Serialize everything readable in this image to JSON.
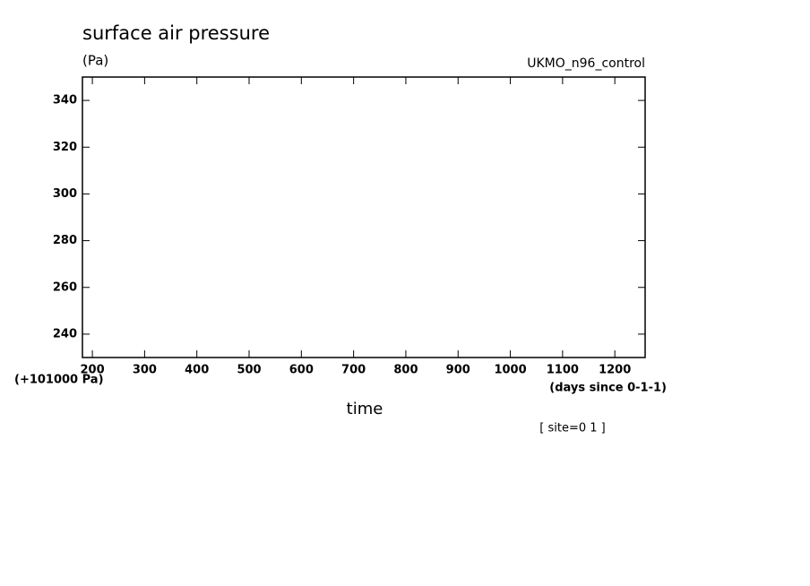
{
  "chart_data": {
    "type": "line",
    "title": "surface air pressure",
    "ylabel": "(Pa)",
    "dataset_label": "UKMO_n96_control",
    "y_offset_label": "(+101000 Pa)",
    "x_unit_label": "(days since 0-1-1)",
    "xlabel": "time",
    "footnote": "[ site=0 1 ]",
    "xlim": [
      181,
      1258
    ],
    "xticks": [
      200,
      300,
      400,
      500,
      600,
      700,
      800,
      900,
      1000,
      1100,
      1200
    ],
    "ylim": [
      230,
      350
    ],
    "yticks": [
      240,
      260,
      280,
      300,
      320,
      340
    ],
    "grid": false,
    "series": []
  }
}
